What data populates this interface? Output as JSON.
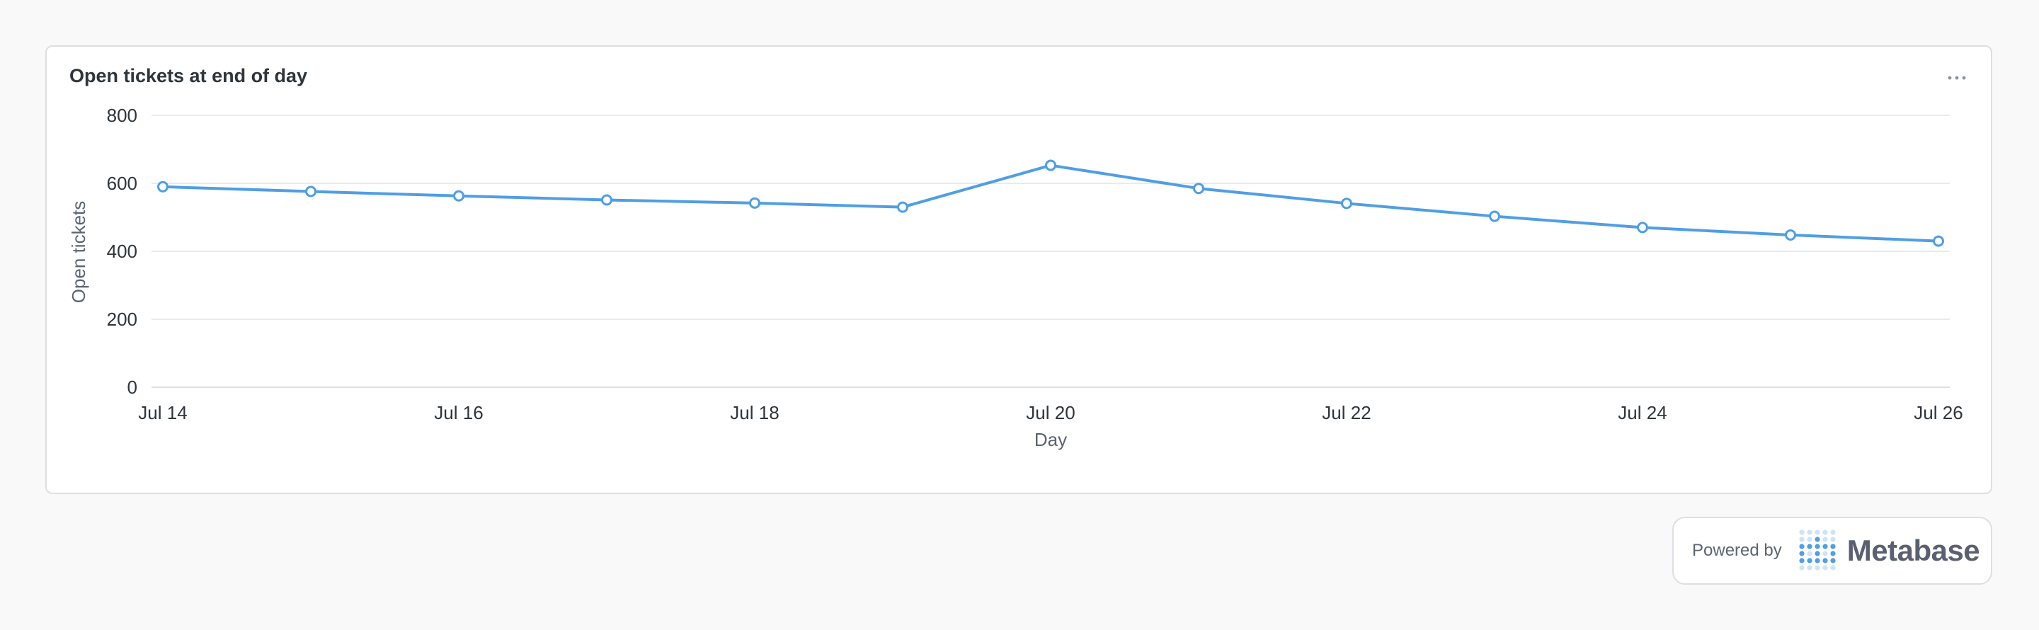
{
  "card": {
    "title": "Open tickets at end of day",
    "menu_icon": "ellipsis-icon"
  },
  "chart_data": {
    "type": "line",
    "x": [
      "Jul 14",
      "Jul 15",
      "Jul 16",
      "Jul 17",
      "Jul 18",
      "Jul 19",
      "Jul 20",
      "Jul 21",
      "Jul 22",
      "Jul 23",
      "Jul 24",
      "Jul 25",
      "Jul 26"
    ],
    "series": [
      {
        "values": [
          590,
          576,
          563,
          551,
          542,
          530,
          653,
          585,
          541,
          503,
          470,
          448,
          430
        ],
        "color": "#509ee3"
      }
    ],
    "x_tick_labels": [
      "Jul 14",
      "Jul 16",
      "Jul 18",
      "Jul 20",
      "Jul 22",
      "Jul 24",
      "Jul 26"
    ],
    "y_ticks": [
      0,
      200,
      400,
      600,
      800
    ],
    "ylim": [
      0,
      800
    ],
    "xlabel": "Day",
    "ylabel": "Open tickets",
    "grid": true,
    "markers": true
  },
  "footer": {
    "powered_label": "Powered by",
    "brand": "Metabase",
    "logo_icon": "metabase-logo-icon"
  },
  "colors": {
    "line": "#509ee3",
    "grid": "#e8eaed",
    "text": "#2e353b",
    "muted": "#5c6470"
  }
}
